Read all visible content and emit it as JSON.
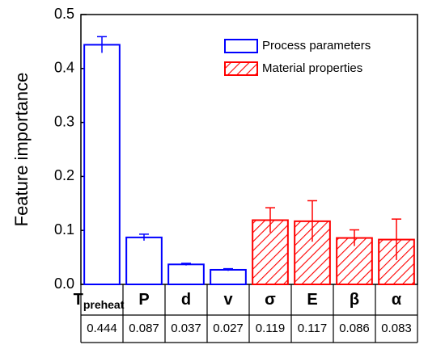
{
  "chart_data": {
    "type": "bar",
    "ylabel": "Feature importance",
    "categories": [
      "T",
      "P",
      "d",
      "v",
      "σ",
      "E",
      "β",
      "α"
    ],
    "category_subscripts": {
      "0": "preheat"
    },
    "series": [
      {
        "name": "Process parameters",
        "color": "#0000ff",
        "pattern": "outline",
        "values": [
          0.444,
          0.087,
          0.037,
          0.027,
          null,
          null,
          null,
          null
        ],
        "errors": [
          0.015,
          0.006,
          0.002,
          0.002,
          null,
          null,
          null,
          null
        ]
      },
      {
        "name": "Material properties",
        "color": "#ff0000",
        "pattern": "hatch",
        "values": [
          null,
          null,
          null,
          null,
          0.119,
          0.117,
          0.086,
          0.083
        ],
        "errors": [
          null,
          null,
          null,
          null,
          0.023,
          0.038,
          0.015,
          0.038
        ]
      }
    ],
    "ylim": [
      0,
      0.5
    ],
    "yticks": [
      {
        "value": 0,
        "label": "0.0"
      },
      0.1,
      0.2,
      0.3,
      0.4,
      0.5
    ],
    "legend": "upper right"
  }
}
